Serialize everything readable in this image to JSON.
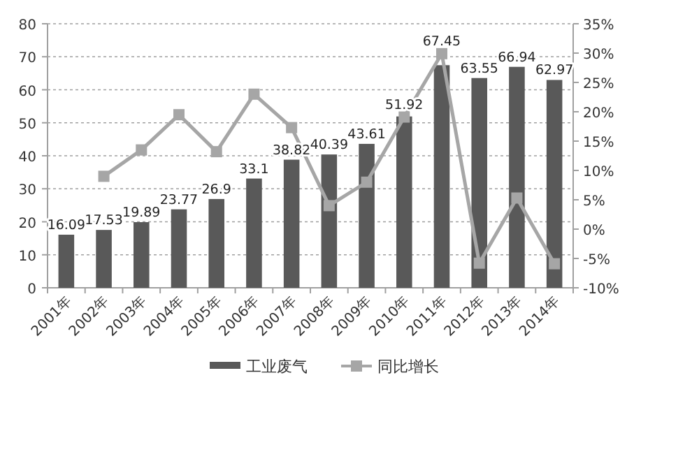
{
  "chart_data": {
    "type": "bar",
    "categories": [
      "2001年",
      "2002年",
      "2003年",
      "2004年",
      "2005年",
      "2006年",
      "2007年",
      "2008年",
      "2009年",
      "2010年",
      "2011年",
      "2012年",
      "2013年",
      "2014年"
    ],
    "series": [
      {
        "name": "工业废气",
        "color": "#595959",
        "values": [
          16.09,
          17.53,
          19.89,
          23.77,
          26.9,
          33.1,
          38.82,
          40.39,
          43.61,
          51.92,
          67.45,
          63.55,
          66.94,
          62.97
        ],
        "value_labels": [
          "16.09",
          "17.53",
          "19.89",
          "23.77",
          "26.9",
          "33.1",
          "38.82",
          "40.39",
          "43.61",
          "51.92",
          "67.45",
          "63.55",
          "66.94",
          "62.97"
        ]
      },
      {
        "name": "同比增长",
        "type": "line",
        "axis": "y2",
        "color": "#a6a6a6",
        "marker": "square",
        "values": [
          null,
          9.0,
          13.5,
          19.5,
          13.2,
          23.0,
          17.3,
          4.0,
          8.0,
          19.1,
          29.9,
          -5.8,
          5.3,
          -5.9
        ]
      }
    ],
    "ylim": [
      0,
      80
    ],
    "yticks": [
      0,
      10,
      20,
      30,
      40,
      50,
      60,
      70,
      80
    ],
    "y2lim": [
      -10,
      35
    ],
    "y2ticks": [
      {
        "value": -10,
        "label": "-10%"
      },
      {
        "value": -5,
        "label": "-5%"
      },
      {
        "value": 0,
        "label": "0%"
      },
      {
        "value": 5,
        "label": "5%"
      },
      {
        "value": 10,
        "label": "10%"
      },
      {
        "value": 15,
        "label": "15%"
      },
      {
        "value": 20,
        "label": "20%"
      },
      {
        "value": 25,
        "label": "25%"
      },
      {
        "value": 30,
        "label": "30%"
      },
      {
        "value": 35,
        "label": "35%"
      }
    ],
    "grid": "y",
    "legend": "bottom"
  }
}
